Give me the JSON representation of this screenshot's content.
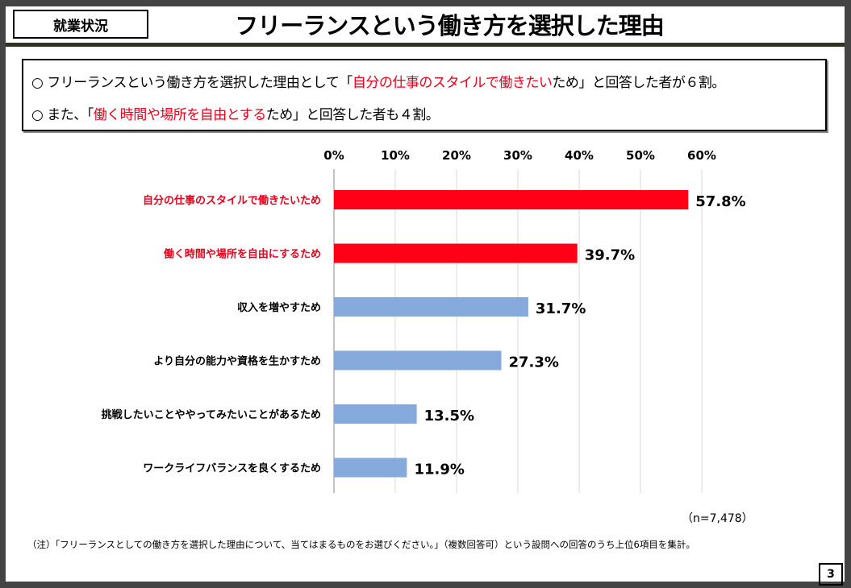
{
  "header": {
    "tag": "就業状況",
    "title": "フリーランスという働き方を選択した理由"
  },
  "summary": {
    "line1": {
      "pre": "○ フリーランスという働き方を選択した理由として「",
      "highlight": "自分の仕事のスタイルで働きたい",
      "post": "ため」と回答した者が６割。"
    },
    "line2": {
      "pre": "○ また、「",
      "highlight": "働く時間や場所を自由とする",
      "post": "ため」と回答した者も４割。"
    }
  },
  "colors": {
    "highlight": "#ff0016",
    "default_bar": "#86aadb",
    "highlight_text": "#e8001c"
  },
  "chart_data": {
    "type": "bar",
    "orientation": "horizontal",
    "categories": [
      "自分の仕事のスタイルで働きたいため",
      "働く時間や場所を自由にするため",
      "収入を増やすため",
      "より自分の能力や資格を生かすため",
      "挑戦したいことややってみたいことがあるため",
      "ワークライフバランスを良くするため"
    ],
    "values": [
      57.8,
      39.7,
      31.7,
      27.3,
      13.5,
      11.9
    ],
    "value_labels": [
      "57.8%",
      "39.7%",
      "31.7%",
      "27.3%",
      "13.5%",
      "11.9%"
    ],
    "highlighted": [
      true,
      true,
      false,
      false,
      false,
      false
    ],
    "xlim": [
      0,
      60
    ],
    "ticks": [
      "0%",
      "10%",
      "20%",
      "30%",
      "40%",
      "50%",
      "60%"
    ],
    "grid": true,
    "axis_position": "top"
  },
  "sample_size": "（n=7,478）",
  "footnote": "（注）「フリーランスとしての働き方を選択した理由について、当てはまるものをお選びください。」（複数回答可）という設問への回答のうち上位6項目を集計。",
  "page_number": "3"
}
